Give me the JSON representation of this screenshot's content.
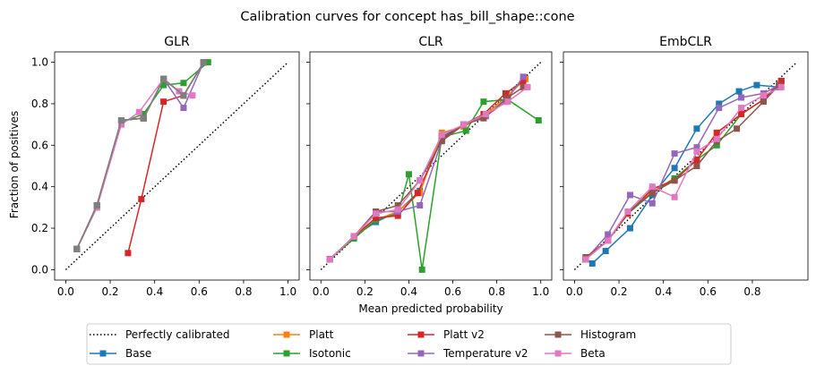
{
  "figure": {
    "title": "Calibration curves for concept has_bill_shape::cone",
    "xlabel": "Mean predicted probability",
    "ylabel": "Fraction of positives"
  },
  "legend": {
    "placement": "bottom-center",
    "ncol": 5,
    "entries": [
      {
        "label": "Perfectly calibrated",
        "color": "#000000",
        "style": "dotted",
        "marker": "none"
      },
      {
        "label": "Base",
        "color": "#1f77b4",
        "style": "solid",
        "marker": "square"
      },
      {
        "label": "Platt",
        "color": "#ff7f0e",
        "style": "solid",
        "marker": "square"
      },
      {
        "label": "Isotonic",
        "color": "#2ca02c",
        "style": "solid",
        "marker": "square"
      },
      {
        "label": "Platt v2",
        "color": "#d62728",
        "style": "solid",
        "marker": "square"
      },
      {
        "label": "Temperature v2",
        "color": "#9467bd",
        "style": "solid",
        "marker": "square"
      },
      {
        "label": "Histogram",
        "color": "#8c564b",
        "style": "solid",
        "marker": "square"
      },
      {
        "label": "Beta",
        "color": "#e377c2",
        "style": "solid",
        "marker": "square"
      },
      {
        "label": "",
        "color": "#7f7f7f",
        "style": "solid",
        "marker": "square"
      }
    ]
  },
  "chart_data": [
    {
      "type": "line",
      "title": "GLR",
      "xlabel": "Mean predicted probability",
      "ylabel": "Fraction of positives",
      "xlim": [
        -0.05,
        1.05
      ],
      "ylim": [
        -0.05,
        1.05
      ],
      "xticks": [
        "0.0",
        "0.2",
        "0.4",
        "0.6",
        "0.8",
        "1.0"
      ],
      "yticks": [
        "0.0",
        "0.2",
        "0.4",
        "0.6",
        "0.8",
        "1.0"
      ],
      "grid": false,
      "reference": {
        "x": [
          0,
          1
        ],
        "y": [
          0,
          1
        ]
      },
      "series": [
        {
          "name": "Base",
          "x": [
            0.05,
            0.14,
            0.25,
            0.35,
            0.44,
            0.53,
            0.62
          ],
          "y": [
            0.1,
            0.31,
            0.72,
            0.73,
            0.92,
            0.84,
            1.0
          ]
        },
        {
          "name": "Platt",
          "x": [
            0.05,
            0.14,
            0.25,
            0.35,
            0.44,
            0.53,
            0.62
          ],
          "y": [
            0.1,
            0.31,
            0.72,
            0.73,
            0.92,
            0.84,
            1.0
          ]
        },
        {
          "name": "Isotonic",
          "x": [
            0.05,
            0.14,
            0.25,
            0.35,
            0.44,
            0.53,
            0.64
          ],
          "y": [
            0.1,
            0.3,
            0.71,
            0.75,
            0.89,
            0.9,
            1.0
          ]
        },
        {
          "name": "Platt v2",
          "x": [
            0.28,
            0.34,
            0.44,
            0.53
          ],
          "y": [
            0.08,
            0.34,
            0.81,
            0.84
          ]
        },
        {
          "name": "Temperature v2",
          "x": [
            0.05,
            0.14,
            0.25,
            0.35,
            0.44,
            0.53,
            0.62
          ],
          "y": [
            0.1,
            0.31,
            0.72,
            0.73,
            0.92,
            0.78,
            1.0
          ]
        },
        {
          "name": "Histogram",
          "x": [
            0.05,
            0.14,
            0.25,
            0.35,
            0.44,
            0.53,
            0.62
          ],
          "y": [
            0.1,
            0.31,
            0.72,
            0.73,
            0.92,
            0.84,
            1.0
          ]
        },
        {
          "name": "Beta",
          "x": [
            0.05,
            0.14,
            0.25,
            0.33,
            0.44,
            0.51,
            0.57
          ],
          "y": [
            0.1,
            0.3,
            0.7,
            0.76,
            0.92,
            0.86,
            0.84
          ]
        },
        {
          "name": "",
          "x": [
            0.05,
            0.14,
            0.25,
            0.35,
            0.44,
            0.53,
            0.62
          ],
          "y": [
            0.1,
            0.31,
            0.72,
            0.73,
            0.92,
            0.84,
            1.0
          ]
        }
      ]
    },
    {
      "type": "line",
      "title": "CLR",
      "xlabel": "Mean predicted probability",
      "ylabel": "",
      "xlim": [
        -0.05,
        1.05
      ],
      "ylim": [
        -0.05,
        1.05
      ],
      "xticks": [
        "0.0",
        "0.2",
        "0.4",
        "0.6",
        "0.8",
        "1.0"
      ],
      "yticks": [],
      "grid": false,
      "reference": {
        "x": [
          0,
          1
        ],
        "y": [
          0,
          1
        ]
      },
      "series": [
        {
          "name": "Base",
          "x": [
            0.04,
            0.15,
            0.25,
            0.35,
            0.45,
            0.55,
            0.65,
            0.75,
            0.85,
            0.93
          ],
          "y": [
            0.05,
            0.16,
            0.23,
            0.28,
            0.38,
            0.64,
            0.7,
            0.75,
            0.84,
            0.92
          ]
        },
        {
          "name": "Platt",
          "x": [
            0.04,
            0.15,
            0.25,
            0.35,
            0.45,
            0.55,
            0.65,
            0.75,
            0.85,
            0.93
          ],
          "y": [
            0.05,
            0.16,
            0.24,
            0.28,
            0.37,
            0.66,
            0.69,
            0.75,
            0.84,
            0.92
          ]
        },
        {
          "name": "Isotonic",
          "x": [
            0.04,
            0.15,
            0.25,
            0.35,
            0.4,
            0.46,
            0.55,
            0.66,
            0.74,
            0.85,
            0.99
          ],
          "y": [
            0.05,
            0.15,
            0.24,
            0.27,
            0.46,
            0.0,
            0.64,
            0.67,
            0.81,
            0.82,
            0.72
          ]
        },
        {
          "name": "Platt v2",
          "x": [
            0.04,
            0.15,
            0.25,
            0.35,
            0.44,
            0.55,
            0.65,
            0.74,
            0.84,
            0.92
          ],
          "y": [
            0.05,
            0.16,
            0.25,
            0.26,
            0.37,
            0.63,
            0.7,
            0.75,
            0.85,
            0.91
          ]
        },
        {
          "name": "Temperature v2",
          "x": [
            0.04,
            0.15,
            0.25,
            0.35,
            0.45,
            0.55,
            0.65,
            0.75,
            0.84,
            0.92
          ],
          "y": [
            0.05,
            0.16,
            0.28,
            0.28,
            0.31,
            0.62,
            0.7,
            0.74,
            0.81,
            0.93
          ]
        },
        {
          "name": "Histogram",
          "x": [
            0.04,
            0.15,
            0.25,
            0.35,
            0.45,
            0.55,
            0.65,
            0.74,
            0.85,
            0.92
          ],
          "y": [
            0.05,
            0.16,
            0.28,
            0.31,
            0.43,
            0.62,
            0.7,
            0.73,
            0.83,
            0.88
          ]
        },
        {
          "name": "Beta",
          "x": [
            0.04,
            0.15,
            0.25,
            0.35,
            0.45,
            0.55,
            0.65,
            0.75,
            0.85,
            0.94
          ],
          "y": [
            0.05,
            0.16,
            0.27,
            0.29,
            0.43,
            0.65,
            0.7,
            0.75,
            0.81,
            0.88
          ]
        }
      ]
    },
    {
      "type": "line",
      "title": "EmbCLR",
      "xlabel": "Mean predicted probability",
      "ylabel": "",
      "xlim": [
        -0.05,
        1.05
      ],
      "ylim": [
        -0.05,
        1.05
      ],
      "xticks": [
        "0.0",
        "0.2",
        "0.4",
        "0.6",
        "0.8"
      ],
      "yticks": [],
      "grid": false,
      "reference": {
        "x": [
          0,
          1
        ],
        "y": [
          0,
          1
        ]
      },
      "series": [
        {
          "name": "Base",
          "x": [
            0.05,
            0.08,
            0.14,
            0.25,
            0.35,
            0.45,
            0.55,
            0.65,
            0.74,
            0.82,
            0.92
          ],
          "y": [
            0.05,
            0.03,
            0.09,
            0.2,
            0.36,
            0.49,
            0.68,
            0.8,
            0.86,
            0.89,
            0.88
          ]
        },
        {
          "name": "Platt",
          "x": [
            0.05,
            0.15,
            0.24,
            0.35,
            0.45,
            0.55,
            0.64,
            0.75,
            0.85,
            0.93
          ],
          "y": [
            0.05,
            0.14,
            0.27,
            0.38,
            0.44,
            0.53,
            0.66,
            0.75,
            0.82,
            0.91
          ]
        },
        {
          "name": "Isotonic",
          "x": [
            0.05,
            0.15,
            0.24,
            0.35,
            0.45,
            0.55,
            0.64,
            0.75,
            0.85,
            0.93
          ],
          "y": [
            0.05,
            0.14,
            0.27,
            0.37,
            0.44,
            0.53,
            0.6,
            0.75,
            0.82,
            0.91
          ]
        },
        {
          "name": "Platt v2",
          "x": [
            0.05,
            0.15,
            0.24,
            0.35,
            0.45,
            0.55,
            0.64,
            0.75,
            0.85,
            0.93
          ],
          "y": [
            0.05,
            0.14,
            0.27,
            0.39,
            0.43,
            0.53,
            0.66,
            0.75,
            0.82,
            0.91
          ]
        },
        {
          "name": "Temperature v2",
          "x": [
            0.05,
            0.15,
            0.25,
            0.35,
            0.45,
            0.55,
            0.65,
            0.75,
            0.85,
            0.92
          ],
          "y": [
            0.05,
            0.17,
            0.36,
            0.32,
            0.56,
            0.59,
            0.78,
            0.83,
            0.85,
            0.89
          ]
        },
        {
          "name": "Histogram",
          "x": [
            0.05,
            0.15,
            0.24,
            0.35,
            0.45,
            0.55,
            0.64,
            0.73,
            0.85,
            0.92
          ],
          "y": [
            0.06,
            0.14,
            0.28,
            0.37,
            0.43,
            0.5,
            0.62,
            0.68,
            0.81,
            0.89
          ]
        },
        {
          "name": "Beta",
          "x": [
            0.05,
            0.15,
            0.24,
            0.35,
            0.45,
            0.55,
            0.64,
            0.75,
            0.85,
            0.93
          ],
          "y": [
            0.05,
            0.14,
            0.28,
            0.4,
            0.35,
            0.57,
            0.63,
            0.78,
            0.84,
            0.88
          ]
        }
      ]
    }
  ]
}
